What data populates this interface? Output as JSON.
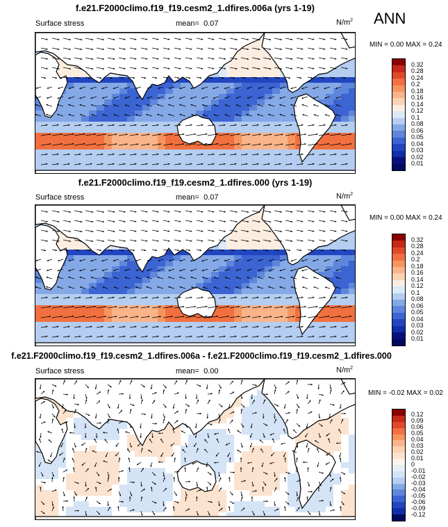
{
  "season": "ANN",
  "panels": [
    {
      "title": "f.e21.F2000climo.f19_f19.cesm2_1.dfires.006a (yrs 1-19)",
      "variable": "Surface stress",
      "mean_label": "mean=",
      "mean_value": "0.07",
      "units": "N/m",
      "units_sup": "2",
      "min_label": "MIN =",
      "min_value": "0.00",
      "max_label": "MAX =",
      "max_value": "0.24",
      "colorbar_levels": [
        "0.32",
        "0.28",
        "0.24",
        "0.2",
        "0.18",
        "0.16",
        "0.14",
        "0.12",
        "0.1",
        "0.08",
        "0.06",
        "0.05",
        "0.04",
        "0.03",
        "0.02",
        "0.01"
      ],
      "colorbar_colors": [
        "#8b0000",
        "#c8281a",
        "#e04a2a",
        "#f2703f",
        "#f6945f",
        "#f9b48a",
        "#fbd2b2",
        "#fbeee0",
        "#dbe9f8",
        "#b4cdf0",
        "#85a9e6",
        "#5e86dc",
        "#3c64d2",
        "#2246c0",
        "#122ea6",
        "#06117e",
        "#000a5e"
      ],
      "field_type": "absolute"
    },
    {
      "title": "f.e21.F2000climo.f19_f19.cesm2_1.dfires.000 (yrs 1-19)",
      "variable": "Surface stress",
      "mean_label": "mean=",
      "mean_value": "0.07",
      "units": "N/m",
      "units_sup": "2",
      "min_label": "MIN =",
      "min_value": "0.00",
      "max_label": "MAX =",
      "max_value": "0.24",
      "colorbar_levels": [
        "0.32",
        "0.28",
        "0.24",
        "0.2",
        "0.18",
        "0.16",
        "0.14",
        "0.12",
        "0.1",
        "0.08",
        "0.06",
        "0.05",
        "0.04",
        "0.03",
        "0.02",
        "0.01"
      ],
      "colorbar_colors": [
        "#8b0000",
        "#c8281a",
        "#e04a2a",
        "#f2703f",
        "#f6945f",
        "#f9b48a",
        "#fbd2b2",
        "#fbeee0",
        "#dbe9f8",
        "#b4cdf0",
        "#85a9e6",
        "#5e86dc",
        "#3c64d2",
        "#2246c0",
        "#122ea6",
        "#06117e",
        "#000a5e"
      ],
      "field_type": "absolute"
    },
    {
      "title": "f.e21.F2000climo.f19_f19.cesm2_1.dfires.006a - f.e21.F2000climo.f19_f19.cesm2_1.dfires.000",
      "variable": "Surface stress",
      "mean_label": "mean=",
      "mean_value": "0.00",
      "units": "N/m",
      "units_sup": "2",
      "min_label": "MIN =",
      "min_value": "-0.02",
      "max_label": "MAX =",
      "max_value": "0.02",
      "colorbar_levels": [
        "0.12",
        "0.09",
        "0.06",
        "0.05",
        "0.04",
        "0.03",
        "0.02",
        "0.01",
        "0",
        "-0.01",
        "-0.02",
        "-0.03",
        "-0.04",
        "-0.05",
        "-0.06",
        "-0.09",
        "-0.12"
      ],
      "colorbar_colors": [
        "#8b0000",
        "#c8281a",
        "#e04a2a",
        "#f2703f",
        "#f6945f",
        "#f9b48a",
        "#fbd2b2",
        "#fbe3cf",
        "#fdf3ea",
        "#e6eefa",
        "#d4e3f6",
        "#b4cdf0",
        "#85a9e6",
        "#5e86dc",
        "#3c64d2",
        "#2246c0",
        "#122ea6",
        "#000a5e"
      ],
      "field_type": "difference"
    }
  ]
}
